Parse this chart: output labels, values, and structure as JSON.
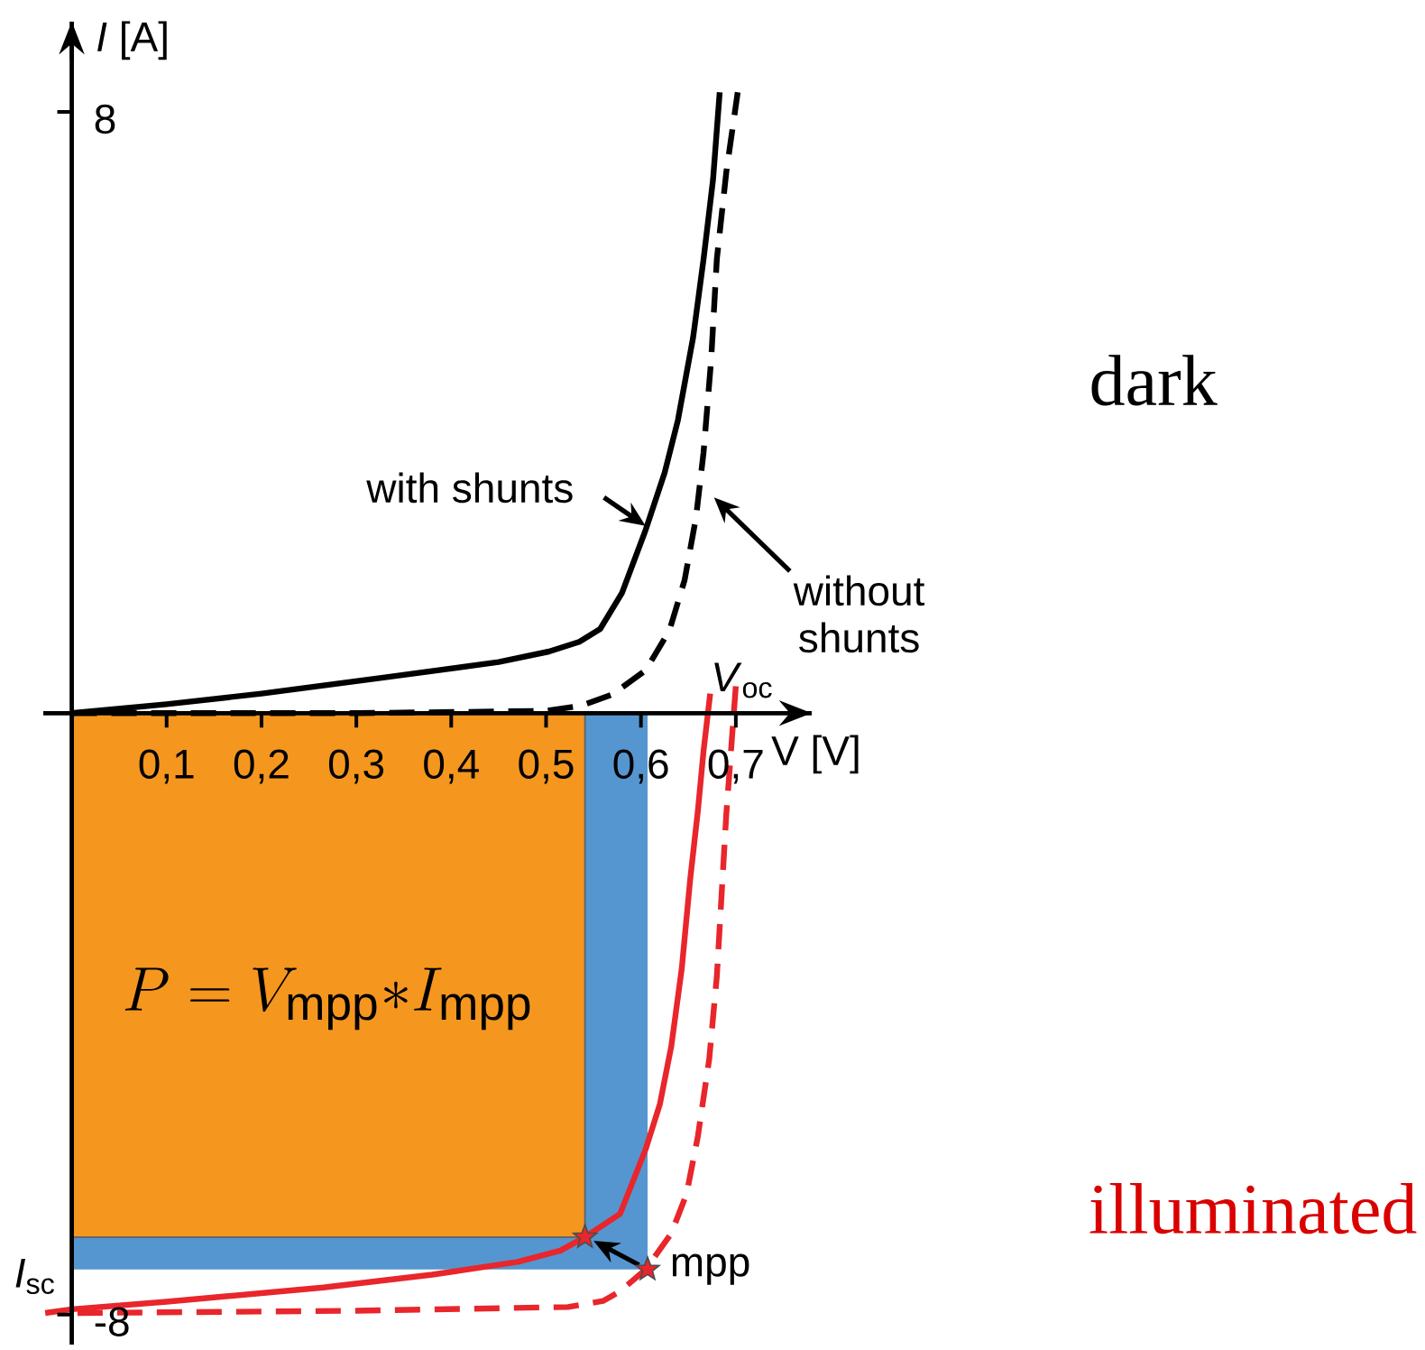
{
  "chart_data": {
    "type": "line",
    "xlabel": "V [V]",
    "ylabel": "*I* [A]",
    "xlim": [
      -0.03,
      0.78
    ],
    "ylim": [
      -8.4,
      9.2
    ],
    "xticks": [
      {
        "value": 0.1,
        "label": "0,1"
      },
      {
        "value": 0.2,
        "label": "0,2"
      },
      {
        "value": 0.3,
        "label": "0,3"
      },
      {
        "value": 0.4,
        "label": "0,4"
      },
      {
        "value": 0.5,
        "label": "0,5"
      },
      {
        "value": 0.6,
        "label": "0,6"
      },
      {
        "value": 0.7,
        "label": "0,7"
      }
    ],
    "yticks": [
      8,
      -8
    ],
    "series": [
      {
        "type": "area",
        "color": "#5596d0",
        "x": [
          0,
          0.607
        ],
        "values": [
          -7.4,
          -7.4
        ]
      },
      {
        "type": "area",
        "color": "#f5961e",
        "x": [
          0,
          0.541
        ],
        "values": [
          -6.97,
          -6.97
        ]
      },
      {
        "type": "line",
        "color": "#000000",
        "line_style": "solid",
        "x": [
          0,
          0.1,
          0.2,
          0.332,
          0.45,
          0.503,
          0.535,
          0.557,
          0.58,
          0.605,
          0.625,
          0.639,
          0.655,
          0.666,
          0.676,
          0.683
        ],
        "values": [
          0,
          0.12,
          0.26,
          0.48,
          0.68,
          0.82,
          0.95,
          1.12,
          1.6,
          2.44,
          3.2,
          3.9,
          5.0,
          6.04,
          7.1,
          8.26
        ]
      },
      {
        "type": "line",
        "color": "#000000",
        "line_style": "dashed",
        "x": [
          0,
          0.3,
          0.5,
          0.537,
          0.57,
          0.605,
          0.63,
          0.646,
          0.658,
          0.666,
          0.674,
          0.68,
          0.69,
          0.702
        ],
        "values": [
          0,
          0,
          0.03,
          0.1,
          0.25,
          0.57,
          1.1,
          1.77,
          2.6,
          3.47,
          4.7,
          6.04,
          7.2,
          8.26
        ]
      },
      {
        "type": "line",
        "color": "#e8262b",
        "line_style": "solid",
        "x": [
          -0.028,
          0,
          0.1,
          0.265,
          0.38,
          0.47,
          0.515,
          0.541,
          0.578,
          0.605,
          0.62,
          0.632,
          0.643,
          0.652,
          0.66,
          0.666,
          0.673
        ],
        "values": [
          -7.98,
          -7.93,
          -7.83,
          -7.64,
          -7.47,
          -7.3,
          -7.15,
          -6.97,
          -6.66,
          -5.8,
          -5.2,
          -4.43,
          -3.4,
          -2.2,
          -1.3,
          -0.5,
          0.26
        ]
      },
      {
        "type": "line",
        "color": "#e8262b",
        "line_style": "dashed",
        "x": [
          0.006,
          0.3,
          0.523,
          0.56,
          0.578,
          0.605,
          0.632,
          0.648,
          0.66,
          0.672,
          0.68,
          0.69,
          0.7
        ],
        "values": [
          -7.98,
          -7.95,
          -7.9,
          -7.82,
          -7.69,
          -7.4,
          -6.92,
          -6.4,
          -5.63,
          -4.6,
          -3.5,
          -1.34,
          0.36
        ]
      },
      {
        "type": "scatter",
        "color": "#e8262b",
        "marker": "star",
        "x": [
          0.541,
          0.607
        ],
        "values": [
          -6.97,
          -7.4
        ]
      }
    ],
    "annotations": [
      {
        "text": "with shunts",
        "x": 0.605,
        "y": 2.49
      },
      "without shunts",
      {
        "text": "*V*$_{oc}$",
        "x": 0.673,
        "y": 0
      },
      {
        "text": "*I*$_{sc}$",
        "x": 0,
        "y": -7.93
      },
      {
        "text": "mpp",
        "x": 0.607,
        "y": -7.4
      },
      "P = V_{\\mathrm{mpp}}{*}I_{\\mathrm{mpp}}",
      "dark",
      "illuminated"
    ]
  }
}
